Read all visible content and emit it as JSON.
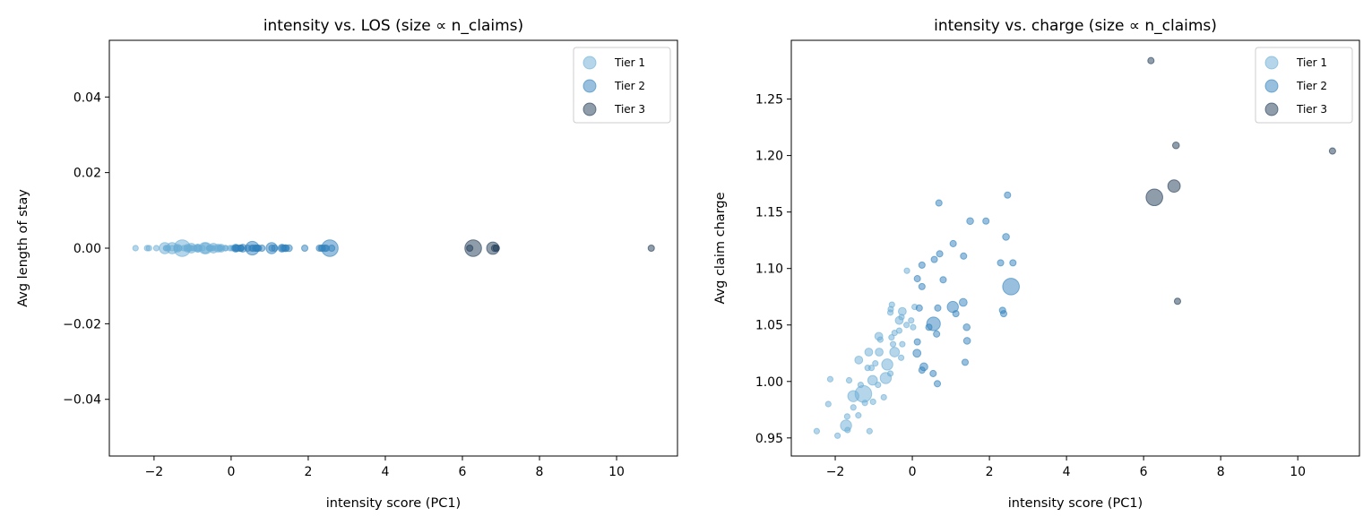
{
  "tier_colors": {
    "1": "#6baed6",
    "2": "#3182bd",
    "3": "#1f3b57"
  },
  "legend": [
    "Tier 1",
    "Tier 2",
    "Tier 3"
  ],
  "chart_data": [
    {
      "type": "scatter",
      "title": "intensity vs. LOS (size ∝ n_claims)",
      "xlabel": "intensity score (PC1)",
      "ylabel": "Avg length of stay",
      "xlim": [
        -3.16,
        11.58
      ],
      "ylim": [
        -0.055,
        0.055
      ],
      "xticks": [
        -2,
        0,
        2,
        4,
        6,
        8,
        10
      ],
      "xtick_labels": [
        "−2",
        "0",
        "2",
        "4",
        "6",
        "8",
        "10"
      ],
      "yticks": [
        -0.04,
        -0.02,
        0.0,
        0.02,
        0.04
      ],
      "ytick_labels": [
        "−0.04",
        "−0.02",
        "0.00",
        "0.02",
        "0.04"
      ],
      "legend_position": "top-right",
      "y_source": "los"
    },
    {
      "type": "scatter",
      "title": "intensity vs. charge (size ∝ n_claims)",
      "xlabel": "intensity score (PC1)",
      "ylabel": "Avg claim charge",
      "xlim": [
        -3.14,
        11.6
      ],
      "ylim": [
        0.934,
        1.302
      ],
      "xticks": [
        -2,
        0,
        2,
        4,
        6,
        8,
        10
      ],
      "xtick_labels": [
        "−2",
        "0",
        "2",
        "4",
        "6",
        "8",
        "10"
      ],
      "yticks": [
        0.95,
        1.0,
        1.05,
        1.1,
        1.15,
        1.2,
        1.25
      ],
      "ytick_labels": [
        "0.95",
        "1.00",
        "1.05",
        "1.10",
        "1.15",
        "1.20",
        "1.25"
      ],
      "legend_position": "top-right",
      "y_source": "charge"
    }
  ],
  "point_fields": [
    "intensity",
    "avg_los",
    "avg_charge",
    "n_claims_rel",
    "tier"
  ],
  "points": [
    [
      -2.48,
      0,
      0.956,
      1,
      1
    ],
    [
      -1.94,
      0,
      0.952,
      1,
      1
    ],
    [
      -1.72,
      0,
      0.961,
      4,
      1
    ],
    [
      -1.68,
      0,
      0.957,
      1,
      1
    ],
    [
      -1.11,
      0,
      0.956,
      1,
      1
    ],
    [
      -2.18,
      0,
      0.98,
      1,
      1
    ],
    [
      -2.13,
      0,
      1.002,
      1,
      1
    ],
    [
      -1.64,
      0,
      1.001,
      1,
      1
    ],
    [
      -1.39,
      0,
      1.019,
      2,
      1
    ],
    [
      -1.53,
      0,
      0.987,
      4,
      1
    ],
    [
      -1.27,
      0,
      0.989,
      9,
      1
    ],
    [
      -1.53,
      0,
      0.977,
      1,
      1
    ],
    [
      -1.4,
      0,
      0.97,
      1,
      1
    ],
    [
      -1.69,
      0,
      0.969,
      1,
      1
    ],
    [
      -1.13,
      0,
      1.026,
      2,
      1
    ],
    [
      -1.16,
      0,
      1.012,
      1,
      1
    ],
    [
      -1.06,
      0,
      1.012,
      1,
      1
    ],
    [
      -1.03,
      0,
      1.001,
      3,
      1
    ],
    [
      -0.96,
      0,
      1.016,
      1,
      1
    ],
    [
      -0.86,
      0,
      1.026,
      2,
      1
    ],
    [
      -0.87,
      0,
      1.04,
      2,
      1
    ],
    [
      -0.83,
      0,
      1.037,
      1,
      1
    ],
    [
      -0.74,
      0,
      0.986,
      1,
      1
    ],
    [
      -1.02,
      0,
      0.982,
      1,
      1
    ],
    [
      -1.23,
      0,
      0.981,
      1,
      1
    ],
    [
      -1.34,
      0,
      0.997,
      1,
      1
    ],
    [
      -0.89,
      0,
      0.997,
      1,
      1
    ],
    [
      -0.65,
      0,
      1.015,
      4,
      1
    ],
    [
      -0.69,
      0,
      1.003,
      4,
      1
    ],
    [
      -0.57,
      0,
      1.007,
      1,
      1
    ],
    [
      -0.5,
      0,
      1.033,
      1,
      1
    ],
    [
      -0.46,
      0,
      1.026,
      3,
      1
    ],
    [
      -0.29,
      0,
      1.021,
      1,
      1
    ],
    [
      -0.26,
      0,
      1.033,
      1,
      1
    ],
    [
      -0.54,
      0,
      1.039,
      1,
      1
    ],
    [
      -0.46,
      0,
      1.043,
      1,
      1
    ],
    [
      -0.34,
      0,
      1.045,
      1,
      1
    ],
    [
      -0.34,
      0,
      1.054,
      2,
      1
    ],
    [
      -0.28,
      0,
      1.057,
      1,
      1
    ],
    [
      -0.26,
      0,
      1.062,
      2,
      1
    ],
    [
      -0.57,
      0,
      1.061,
      1,
      1
    ],
    [
      -0.56,
      0,
      1.064,
      1,
      1
    ],
    [
      -0.53,
      0,
      1.068,
      1,
      1
    ],
    [
      -0.14,
      0,
      1.098,
      1,
      1
    ],
    [
      -0.15,
      0,
      1.05,
      1,
      1
    ],
    [
      -0.03,
      0,
      1.054,
      1,
      1
    ],
    [
      0.02,
      0,
      1.048,
      1,
      1
    ],
    [
      0.06,
      0,
      1.066,
      1,
      1
    ],
    [
      0.18,
      0,
      1.065,
      1.3,
      2
    ],
    [
      0.13,
      0,
      1.091,
      1.3,
      2
    ],
    [
      0.25,
      0,
      1.103,
      1.3,
      2
    ],
    [
      0.25,
      0,
      1.084,
      1.3,
      2
    ],
    [
      0.13,
      0,
      1.035,
      1.3,
      2
    ],
    [
      0.12,
      0,
      1.025,
      2,
      2
    ],
    [
      0.3,
      0,
      1.013,
      2,
      2
    ],
    [
      0.25,
      0,
      1.01,
      1.3,
      2
    ],
    [
      0.54,
      0,
      1.007,
      1.3,
      2
    ],
    [
      0.65,
      0,
      0.998,
      1.3,
      2
    ],
    [
      0.55,
      0,
      1.051,
      6,
      2
    ],
    [
      0.43,
      0,
      1.048,
      1.3,
      2
    ],
    [
      0.63,
      0,
      1.042,
      1.3,
      2
    ],
    [
      0.66,
      0,
      1.065,
      1.3,
      2
    ],
    [
      0.8,
      0,
      1.09,
      1.3,
      2
    ],
    [
      0.57,
      0,
      1.108,
      1.3,
      2
    ],
    [
      0.71,
      0,
      1.113,
      1.3,
      2
    ],
    [
      0.69,
      0,
      1.158,
      1.3,
      2
    ],
    [
      1.05,
      0,
      1.066,
      4,
      2
    ],
    [
      1.13,
      0,
      1.06,
      1.3,
      2
    ],
    [
      1.06,
      0,
      1.122,
      1.3,
      2
    ],
    [
      1.32,
      0,
      1.07,
      2,
      2
    ],
    [
      1.33,
      0,
      1.111,
      1.3,
      2
    ],
    [
      1.41,
      0,
      1.048,
      1.5,
      2
    ],
    [
      1.42,
      0,
      1.036,
      1.5,
      2
    ],
    [
      1.37,
      0,
      1.017,
      1.3,
      2
    ],
    [
      1.5,
      0,
      1.142,
      1.5,
      2
    ],
    [
      1.91,
      0,
      1.142,
      1.3,
      2
    ],
    [
      2.29,
      0,
      1.105,
      1.3,
      2
    ],
    [
      2.61,
      0,
      1.105,
      1.3,
      2
    ],
    [
      2.43,
      0,
      1.128,
      1.5,
      2
    ],
    [
      2.47,
      0,
      1.165,
      1.3,
      2
    ],
    [
      2.56,
      0,
      1.084,
      9,
      2
    ],
    [
      2.34,
      0,
      1.063,
      1.3,
      2
    ],
    [
      2.37,
      0,
      1.06,
      1.3,
      2
    ],
    [
      6.19,
      0,
      1.284,
      1.3,
      3
    ],
    [
      6.84,
      0,
      1.209,
      1.5,
      3
    ],
    [
      10.9,
      0,
      1.204,
      1.3,
      3
    ],
    [
      6.28,
      0,
      1.163,
      9,
      3
    ],
    [
      6.79,
      0,
      1.173,
      5,
      3
    ],
    [
      6.88,
      0,
      1.071,
      1.3,
      3
    ]
  ]
}
